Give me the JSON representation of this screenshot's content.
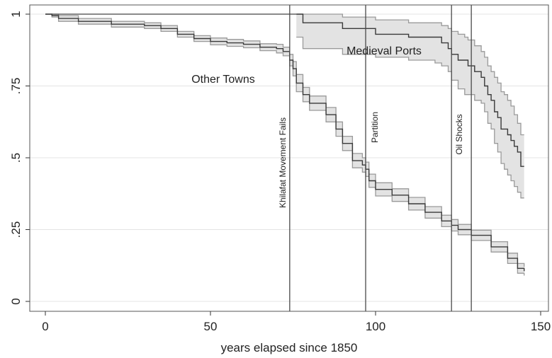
{
  "chart_data": {
    "type": "line",
    "xlabel": "years elapsed since 1850",
    "ylabel": "",
    "xlim": [
      0,
      150
    ],
    "ylim": [
      0,
      1
    ],
    "x_ticks": [
      0,
      50,
      100,
      150
    ],
    "y_ticks": [
      0,
      0.25,
      0.5,
      0.75,
      1
    ],
    "y_tick_labels": [
      "0",
      ".25",
      ".5",
      ".75",
      "1"
    ],
    "grid": "horizontal",
    "step": true,
    "annotations": [
      {
        "text": "Other Towns"
      },
      {
        "text": "Medieval Ports"
      }
    ],
    "events": [
      {
        "x": 74,
        "label": "Khilafat Movement Fails"
      },
      {
        "x": 97,
        "label": "Partition"
      },
      {
        "x": 123,
        "label": "Oil Shocks"
      },
      {
        "x": 129,
        "label": ""
      }
    ],
    "series": [
      {
        "id": "other",
        "x": [
          0,
          2,
          4,
          10,
          15,
          20,
          30,
          35,
          40,
          45,
          50,
          55,
          60,
          65,
          70,
          72,
          74,
          75,
          76,
          78,
          80,
          85,
          88,
          90,
          93,
          96,
          97,
          98,
          100,
          105,
          110,
          115,
          120,
          123,
          125,
          129,
          135,
          140,
          143,
          145
        ],
        "y": [
          1,
          0.995,
          0.985,
          0.975,
          0.975,
          0.965,
          0.96,
          0.95,
          0.93,
          0.915,
          0.905,
          0.9,
          0.895,
          0.885,
          0.88,
          0.87,
          0.84,
          0.81,
          0.76,
          0.72,
          0.69,
          0.65,
          0.6,
          0.55,
          0.49,
          0.475,
          0.46,
          0.42,
          0.39,
          0.37,
          0.34,
          0.31,
          0.28,
          0.265,
          0.25,
          0.23,
          0.19,
          0.15,
          0.115,
          0.105
        ],
        "lower": [
          1,
          0.99,
          0.975,
          0.965,
          0.965,
          0.955,
          0.95,
          0.94,
          0.92,
          0.905,
          0.893,
          0.888,
          0.883,
          0.873,
          0.865,
          0.855,
          0.82,
          0.785,
          0.73,
          0.695,
          0.665,
          0.625,
          0.575,
          0.525,
          0.465,
          0.45,
          0.435,
          0.397,
          0.367,
          0.348,
          0.318,
          0.29,
          0.26,
          0.245,
          0.232,
          0.212,
          0.172,
          0.132,
          0.098,
          0.09
        ],
        "upper": [
          1,
          1,
          0.995,
          0.985,
          0.985,
          0.975,
          0.97,
          0.96,
          0.94,
          0.925,
          0.917,
          0.912,
          0.907,
          0.897,
          0.895,
          0.885,
          0.86,
          0.835,
          0.79,
          0.745,
          0.715,
          0.675,
          0.625,
          0.575,
          0.515,
          0.5,
          0.485,
          0.443,
          0.413,
          0.392,
          0.362,
          0.33,
          0.3,
          0.285,
          0.268,
          0.248,
          0.208,
          0.168,
          0.132,
          0.12
        ]
      },
      {
        "id": "ports",
        "x": [
          76,
          78,
          80,
          90,
          100,
          110,
          118,
          120,
          122,
          123,
          125,
          127,
          128,
          130,
          132,
          133,
          134,
          135,
          136,
          137,
          138,
          139,
          140,
          141,
          142,
          143,
          144,
          145
        ],
        "y": [
          1,
          0.97,
          0.97,
          0.95,
          0.93,
          0.92,
          0.92,
          0.9,
          0.88,
          0.86,
          0.84,
          0.84,
          0.82,
          0.8,
          0.78,
          0.75,
          0.72,
          0.7,
          0.66,
          0.64,
          0.6,
          0.6,
          0.58,
          0.56,
          0.54,
          0.52,
          0.47,
          0.47
        ],
        "lower": [
          0.92,
          0.88,
          0.88,
          0.86,
          0.85,
          0.84,
          0.83,
          0.82,
          0.8,
          0.77,
          0.74,
          0.72,
          0.72,
          0.7,
          0.69,
          0.66,
          0.62,
          0.6,
          0.55,
          0.52,
          0.48,
          0.46,
          0.44,
          0.42,
          0.4,
          0.38,
          0.36,
          0.36
        ],
        "upper": [
          1,
          1,
          1,
          0.99,
          0.98,
          0.97,
          0.97,
          0.96,
          0.95,
          0.94,
          0.93,
          0.92,
          0.91,
          0.89,
          0.87,
          0.85,
          0.82,
          0.8,
          0.78,
          0.76,
          0.73,
          0.72,
          0.7,
          0.68,
          0.65,
          0.62,
          0.58,
          0.58
        ]
      }
    ]
  }
}
